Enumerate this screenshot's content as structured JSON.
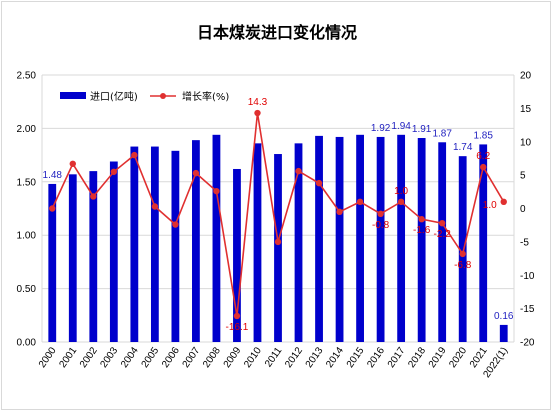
{
  "chart_data": {
    "type": "bar",
    "title": "日本煤炭进口变化情况",
    "categories": [
      "2000",
      "2001",
      "2002",
      "2003",
      "2004",
      "2005",
      "2006",
      "2007",
      "2008",
      "2009",
      "2010",
      "2011",
      "2012",
      "2013",
      "2014",
      "2015",
      "2016",
      "2017",
      "2018",
      "2019",
      "2020",
      "2021",
      "2022(1)"
    ],
    "series": [
      {
        "name": "进口(亿吨)",
        "type": "bar",
        "axis": "left",
        "color": "#0000cc",
        "values": [
          1.48,
          1.57,
          1.6,
          1.69,
          1.83,
          1.83,
          1.79,
          1.89,
          1.94,
          1.62,
          1.86,
          1.76,
          1.86,
          1.93,
          1.92,
          1.94,
          1.92,
          1.94,
          1.91,
          1.87,
          1.74,
          1.85,
          0.16
        ]
      },
      {
        "name": "增长率(%)",
        "type": "line",
        "axis": "right",
        "color": "#e03030",
        "values": [
          0.0,
          6.7,
          1.8,
          5.5,
          8.0,
          0.3,
          -2.4,
          5.3,
          2.6,
          -16.1,
          14.3,
          -5.0,
          5.6,
          3.8,
          -0.5,
          1.0,
          -0.8,
          1.0,
          -1.6,
          -2.2,
          -6.8,
          6.2,
          1.0
        ]
      }
    ],
    "bar_labels": [
      {
        "index": 0,
        "text": "1.48"
      },
      {
        "index": 16,
        "text": "1.92"
      },
      {
        "index": 17,
        "text": "1.94"
      },
      {
        "index": 18,
        "text": "1.91"
      },
      {
        "index": 19,
        "text": "1.87"
      },
      {
        "index": 20,
        "text": "1.74"
      },
      {
        "index": 21,
        "text": "1.85"
      },
      {
        "index": 22,
        "text": "0.16"
      }
    ],
    "line_labels": [
      {
        "index": 9,
        "text": "-16.1"
      },
      {
        "index": 10,
        "text": "14.3"
      },
      {
        "index": 16,
        "text": "-0.8"
      },
      {
        "index": 17,
        "text": "1.0"
      },
      {
        "index": 18,
        "text": "-1.6"
      },
      {
        "index": 19,
        "text": "-2.2"
      },
      {
        "index": 20,
        "text": "-6.8"
      },
      {
        "index": 21,
        "text": "6.2"
      },
      {
        "index": 22,
        "text": "1.0"
      }
    ],
    "y_left": {
      "min": 0,
      "max": 2.5,
      "step": 0.5,
      "tick_labels": [
        "0.00",
        "0.50",
        "1.00",
        "1.50",
        "2.00",
        "2.50"
      ]
    },
    "y_right": {
      "min": -20,
      "max": 20,
      "step": 5,
      "tick_labels": [
        "-20",
        "-15",
        "-10",
        "-5",
        "0",
        "5",
        "10",
        "15",
        "20"
      ]
    },
    "grid": true,
    "legend_position": "top-left"
  }
}
